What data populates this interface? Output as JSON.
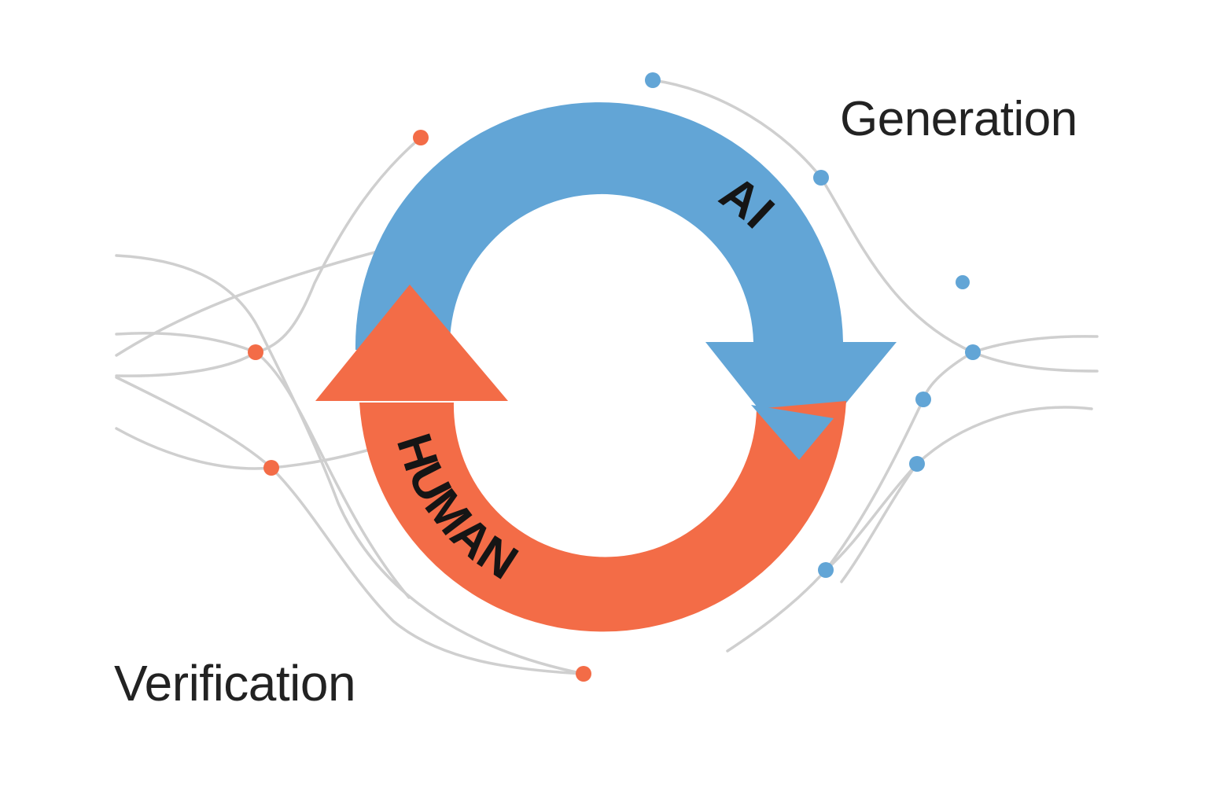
{
  "labels": {
    "generation": "Generation",
    "verification": "Verification"
  },
  "cycle": {
    "ai_label": "AI",
    "human_label": "HUMAN"
  },
  "colors": {
    "ai_arrow": "#62a5d6",
    "human_arrow": "#f36c47",
    "network_line": "#cfcfcf",
    "ai_node": "#62a5d6",
    "human_node": "#f36c47",
    "text": "#222222"
  }
}
